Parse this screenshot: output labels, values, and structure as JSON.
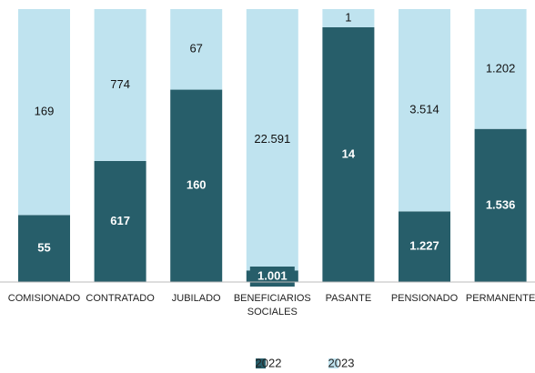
{
  "chart_data": {
    "type": "stacked_percent_bar",
    "categories": [
      "COMISIONADO",
      "CONTRATADO",
      "JUBILADO",
      "BENEFICIARIOS SOCIALES",
      "PASANTE",
      "PENSIONADO",
      "PERMANENTE"
    ],
    "series": [
      {
        "name": "2022",
        "color": "#275e6a",
        "values": [
          55,
          617,
          160,
          1001,
          14,
          1227,
          1536
        ],
        "value_labels": [
          "55",
          "617",
          "160",
          "1.001",
          "14",
          "1.227",
          "1.536"
        ]
      },
      {
        "name": "2023",
        "color": "#bfe3ef",
        "values": [
          169,
          774,
          67,
          22591,
          1,
          3514,
          1202
        ],
        "value_labels": [
          "169",
          "774",
          "67",
          "22.591",
          "1",
          "3.514",
          "1.202"
        ]
      }
    ],
    "legend": "bottom"
  }
}
